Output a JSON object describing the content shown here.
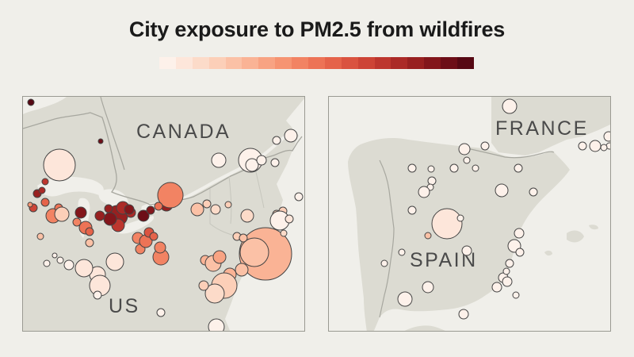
{
  "title": "City exposure to PM2.5 from wildfires",
  "color_scale": [
    "#fdf1ea",
    "#fde6da",
    "#fcdbc9",
    "#fccfb8",
    "#fbc1a6",
    "#fab395",
    "#f8a383",
    "#f69472",
    "#f28363",
    "#ed7356",
    "#e5634a",
    "#da5340",
    "#cd4436",
    "#bd362e",
    "#ab2a27",
    "#982020",
    "#83161b",
    "#6d0e17",
    "#560813"
  ],
  "map_us": {
    "labels": {
      "country_north": "CANADA",
      "country_south": "US"
    },
    "land_color": "#dcdbd2",
    "water_color": "#f0efea"
  },
  "map_spain": {
    "labels": {
      "country_north": "FRANCE",
      "country_main": "SPAIN"
    },
    "land_color": "#dcdbd2",
    "water_color": "#f0efea"
  }
}
